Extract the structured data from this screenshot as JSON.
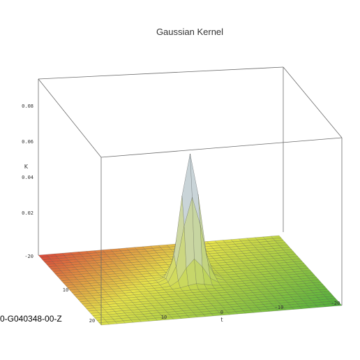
{
  "chart_data": {
    "type": "surface",
    "title": "Gaussian Kernel",
    "zlabel": "K",
    "xlabel": "t",
    "ylabel": "",
    "z_ticks": [
      "0.02",
      "0.04",
      "0.06",
      "0.08"
    ],
    "x_ticks": [
      "10",
      "0",
      "-10",
      "-20"
    ],
    "y_ticks": [
      "-20",
      "10",
      "20"
    ],
    "xlim": [
      -20,
      20
    ],
    "ylim": [
      -20,
      20
    ],
    "zlim": [
      0,
      0.09
    ],
    "surface": {
      "function": "gaussian",
      "peak_value": 0.07,
      "peak_x": 0,
      "peak_y": 0,
      "sigma": 1.5,
      "grid_step": 1.333
    },
    "colors": {
      "base_red": "#d9463a",
      "base_yellow": "#e6e24a",
      "base_green": "#4fae3c",
      "peak": "#c9d3ea"
    },
    "grid": false,
    "legend": "none"
  },
  "caption": "0-G040348-00-Z"
}
